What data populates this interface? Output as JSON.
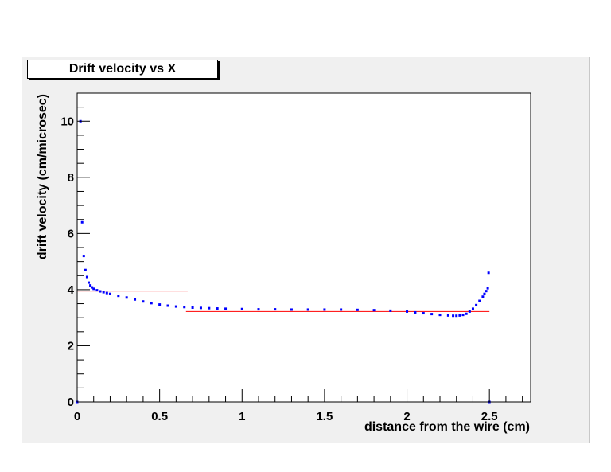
{
  "chart_data": {
    "type": "scatter",
    "title": "Drift velocity vs X",
    "xlabel": "distance from the wire (cm)",
    "ylabel": "drift velocity (cm/microsec)",
    "xlim": [
      0,
      2.75
    ],
    "ylim": [
      0,
      11
    ],
    "x_ticks": [
      0,
      0.5,
      1,
      1.5,
      2,
      2.5
    ],
    "x_tick_labels": [
      "0",
      "0.5",
      "1",
      "1.5",
      "2",
      "2.5"
    ],
    "y_ticks": [
      0,
      2,
      4,
      6,
      8,
      10
    ],
    "y_tick_labels": [
      "0",
      "2",
      "4",
      "6",
      "8",
      "10"
    ],
    "grid": false,
    "marker_color": "#0000ff",
    "fit_color": "#ff0000",
    "series": [
      {
        "points": [
          [
            0.0,
            0.0
          ],
          [
            0.02,
            10.0
          ],
          [
            0.03,
            6.4
          ],
          [
            0.04,
            5.2
          ],
          [
            0.05,
            4.7
          ],
          [
            0.06,
            4.45
          ],
          [
            0.07,
            4.25
          ],
          [
            0.08,
            4.15
          ],
          [
            0.09,
            4.08
          ],
          [
            0.1,
            4.03
          ],
          [
            0.12,
            3.98
          ],
          [
            0.14,
            3.94
          ],
          [
            0.16,
            3.91
          ],
          [
            0.18,
            3.88
          ],
          [
            0.2,
            3.85
          ],
          [
            0.25,
            3.78
          ],
          [
            0.3,
            3.72
          ],
          [
            0.35,
            3.65
          ],
          [
            0.4,
            3.58
          ],
          [
            0.45,
            3.52
          ],
          [
            0.5,
            3.47
          ],
          [
            0.55,
            3.43
          ],
          [
            0.6,
            3.4
          ],
          [
            0.65,
            3.38
          ],
          [
            0.7,
            3.36
          ],
          [
            0.75,
            3.35
          ],
          [
            0.8,
            3.34
          ],
          [
            0.85,
            3.33
          ],
          [
            0.9,
            3.32
          ],
          [
            1.0,
            3.31
          ],
          [
            1.1,
            3.3
          ],
          [
            1.2,
            3.3
          ],
          [
            1.3,
            3.29
          ],
          [
            1.4,
            3.29
          ],
          [
            1.5,
            3.29
          ],
          [
            1.6,
            3.29
          ],
          [
            1.7,
            3.28
          ],
          [
            1.8,
            3.27
          ],
          [
            1.9,
            3.25
          ],
          [
            2.0,
            3.22
          ],
          [
            2.05,
            3.19
          ],
          [
            2.1,
            3.16
          ],
          [
            2.15,
            3.13
          ],
          [
            2.2,
            3.1
          ],
          [
            2.25,
            3.08
          ],
          [
            2.28,
            3.07
          ],
          [
            2.3,
            3.07
          ],
          [
            2.32,
            3.08
          ],
          [
            2.34,
            3.1
          ],
          [
            2.36,
            3.14
          ],
          [
            2.38,
            3.22
          ],
          [
            2.4,
            3.32
          ],
          [
            2.42,
            3.45
          ],
          [
            2.44,
            3.6
          ],
          [
            2.46,
            3.75
          ],
          [
            2.47,
            3.85
          ],
          [
            2.48,
            3.95
          ],
          [
            2.49,
            4.05
          ],
          [
            2.495,
            4.6
          ],
          [
            2.5,
            0.0
          ]
        ]
      }
    ],
    "fit_lines": [
      {
        "x": [
          0,
          0.67
        ],
        "y": [
          3.95,
          3.95
        ]
      },
      {
        "x": [
          0.66,
          2.5
        ],
        "y": [
          3.22,
          3.22
        ]
      }
    ]
  }
}
